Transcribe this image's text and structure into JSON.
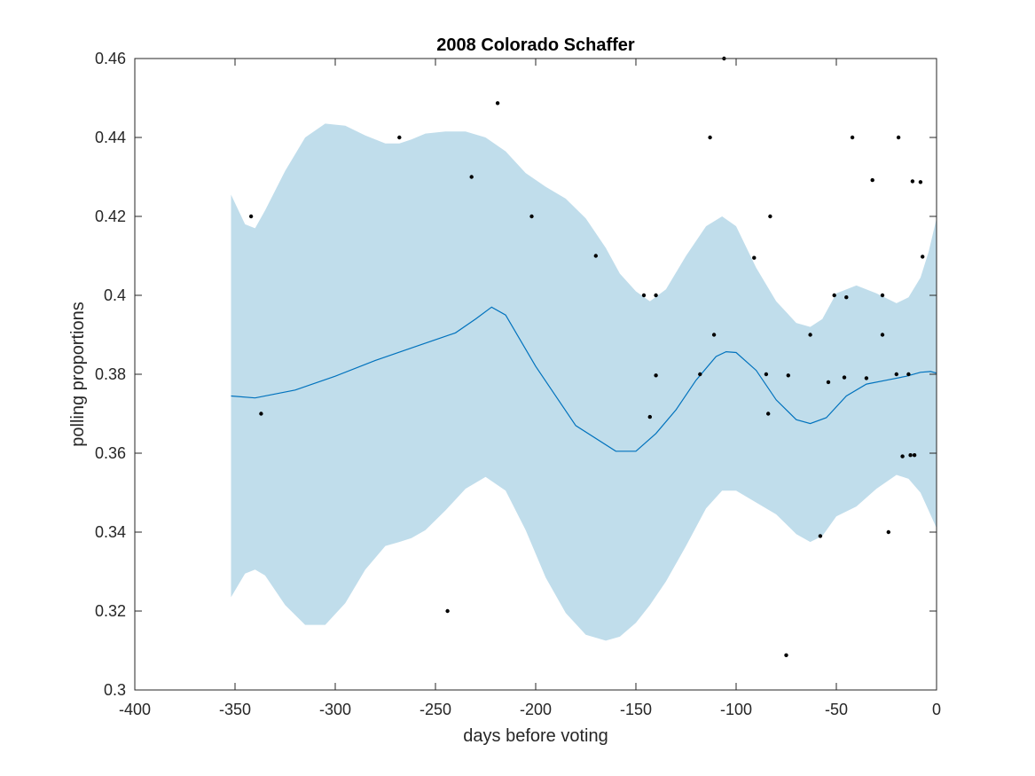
{
  "chart_data": {
    "type": "line",
    "title": "2008 Colorado Schaffer",
    "xlabel": "days before voting",
    "ylabel": "polling proportions",
    "xlim": [
      -400,
      0
    ],
    "ylim": [
      0.3,
      0.46
    ],
    "xticks": [
      -400,
      -350,
      -300,
      -250,
      -200,
      -150,
      -100,
      -50,
      0
    ],
    "xtick_labels": [
      "-400",
      "-350",
      "-300",
      "-250",
      "-200",
      "-150",
      "-100",
      "-50",
      "0"
    ],
    "yticks": [
      0.3,
      0.32,
      0.34,
      0.36,
      0.38,
      0.4,
      0.42,
      0.44,
      0.46
    ],
    "ytick_labels": [
      "0.3",
      "0.32",
      "0.34",
      "0.36",
      "0.38",
      "0.4",
      "0.42",
      "0.44",
      "0.46"
    ],
    "grid": false,
    "colors": {
      "line": "#0072BD",
      "band": "#C0DDEB",
      "points": "#000000",
      "axis": "#262626"
    },
    "mean_line": {
      "x": [
        -352,
        -340,
        -320,
        -300,
        -280,
        -260,
        -240,
        -230,
        -222,
        -215,
        -200,
        -180,
        -160,
        -150,
        -140,
        -130,
        -120,
        -110,
        -105,
        -100,
        -90,
        -80,
        -70,
        -63,
        -55,
        -45,
        -35,
        -25,
        -15,
        -8,
        -3,
        0
      ],
      "y": [
        0.3745,
        0.374,
        0.376,
        0.3795,
        0.3835,
        0.387,
        0.3905,
        0.394,
        0.397,
        0.395,
        0.382,
        0.367,
        0.3605,
        0.3605,
        0.365,
        0.371,
        0.3785,
        0.3845,
        0.3857,
        0.3855,
        0.381,
        0.3735,
        0.3685,
        0.3675,
        0.369,
        0.3745,
        0.3775,
        0.3785,
        0.3795,
        0.3805,
        0.3807,
        0.3803
      ]
    },
    "confidence_band": {
      "x": [
        -352,
        -345,
        -340,
        -335,
        -325,
        -315,
        -305,
        -295,
        -285,
        -275,
        -268,
        -262,
        -255,
        -245,
        -235,
        -225,
        -215,
        -205,
        -195,
        -185,
        -175,
        -165,
        -158,
        -150,
        -143,
        -135,
        -125,
        -115,
        -107,
        -100,
        -90,
        -80,
        -70,
        -63,
        -57,
        -50,
        -40,
        -30,
        -20,
        -14,
        -8,
        -4,
        0
      ],
      "upper": [
        0.4255,
        0.418,
        0.417,
        0.4215,
        0.4315,
        0.44,
        0.4435,
        0.443,
        0.4405,
        0.4385,
        0.4385,
        0.4395,
        0.441,
        0.4415,
        0.4415,
        0.44,
        0.4365,
        0.431,
        0.4275,
        0.4245,
        0.4195,
        0.412,
        0.4055,
        0.401,
        0.3985,
        0.4015,
        0.41,
        0.4175,
        0.42,
        0.4175,
        0.407,
        0.3985,
        0.393,
        0.392,
        0.394,
        0.4005,
        0.4025,
        0.4005,
        0.398,
        0.3995,
        0.4045,
        0.411,
        0.4195
      ],
      "lower": [
        0.3235,
        0.3295,
        0.3305,
        0.329,
        0.3215,
        0.3165,
        0.3165,
        0.322,
        0.3305,
        0.3365,
        0.3375,
        0.3385,
        0.3405,
        0.3455,
        0.351,
        0.354,
        0.3505,
        0.3405,
        0.3285,
        0.3195,
        0.314,
        0.3125,
        0.3135,
        0.317,
        0.3215,
        0.3275,
        0.3365,
        0.346,
        0.3505,
        0.3505,
        0.3475,
        0.3445,
        0.3395,
        0.3375,
        0.339,
        0.344,
        0.3465,
        0.351,
        0.3545,
        0.3535,
        0.35,
        0.3455,
        0.341
      ]
    },
    "points": {
      "x": [
        -342,
        -337,
        -268,
        -244,
        -232,
        -219,
        -202,
        -170,
        -146,
        -143,
        -140,
        -140,
        -118,
        -113,
        -111,
        -106,
        -85,
        -84,
        -83,
        -91,
        -74,
        -75,
        -63,
        -58,
        -54,
        -51,
        -46,
        -45,
        -42,
        -35,
        -32,
        -27,
        -27,
        -24,
        -20,
        -19,
        -17,
        -14,
        -13,
        -12,
        -11,
        -8,
        -7
      ],
      "y": [
        0.42,
        0.37,
        0.44,
        0.32,
        0.43,
        0.4487,
        0.42,
        0.41,
        0.4,
        0.3692,
        0.3797,
        0.4,
        0.38,
        0.44,
        0.39,
        0.46,
        0.38,
        0.37,
        0.42,
        0.4095,
        0.3797,
        0.3088,
        0.39,
        0.339,
        0.378,
        0.4,
        0.3792,
        0.3995,
        0.44,
        0.379,
        0.4292,
        0.39,
        0.4,
        0.34,
        0.38,
        0.44,
        0.3592,
        0.38,
        0.3595,
        0.4289,
        0.3595,
        0.4287,
        0.4098
      ]
    }
  }
}
